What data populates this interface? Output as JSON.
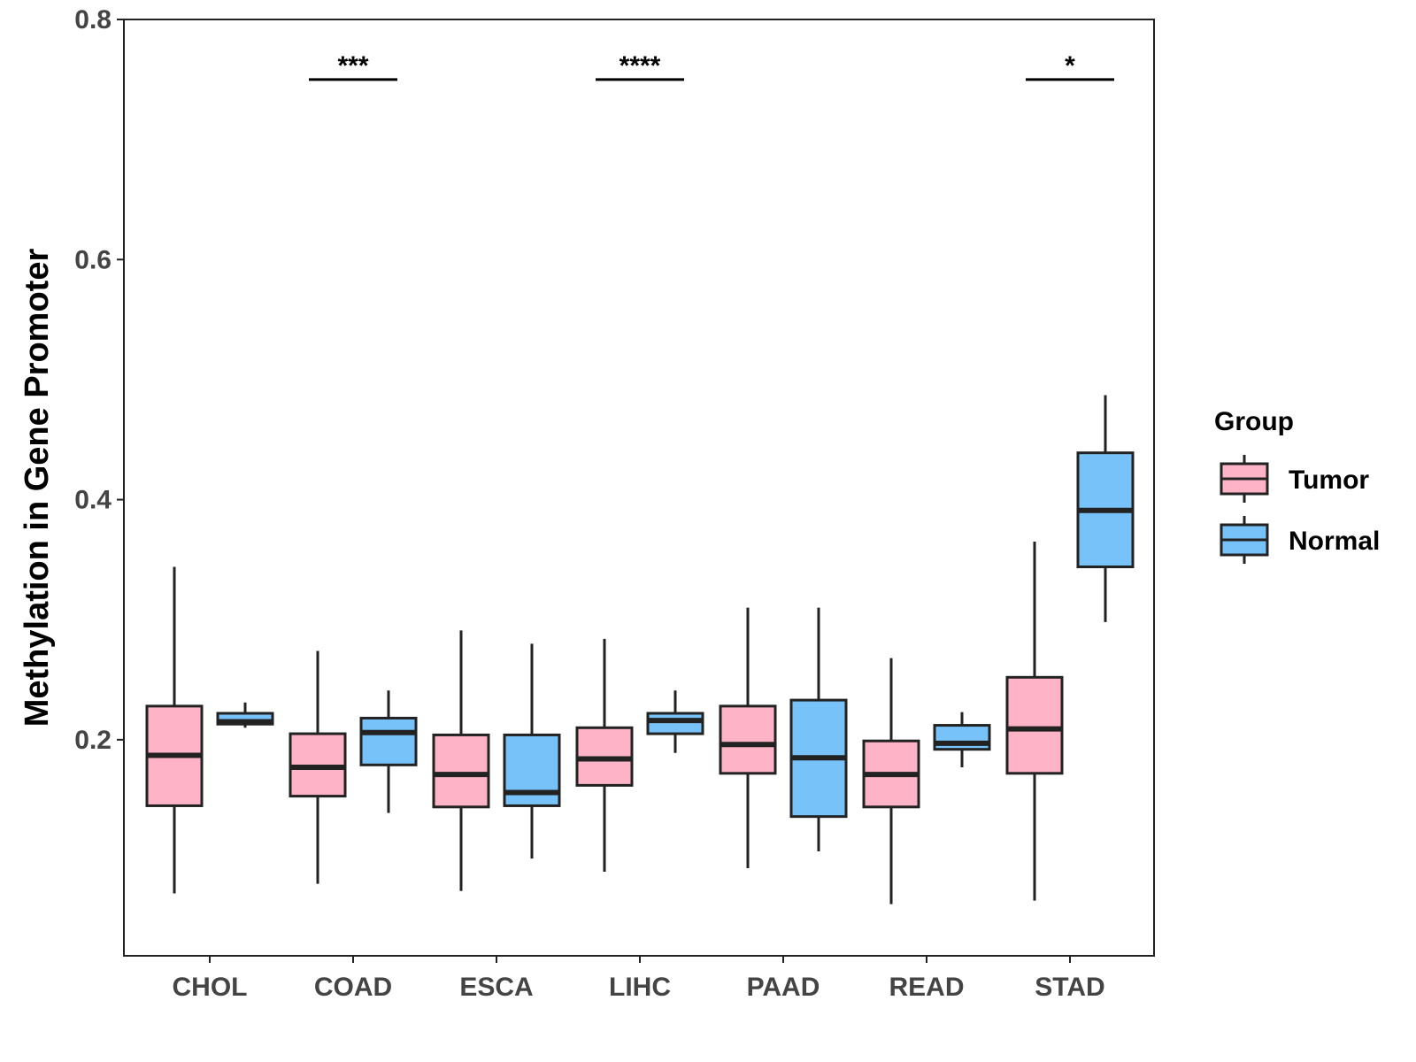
{
  "chart_data": {
    "type": "boxplot",
    "title": "",
    "xlabel": "",
    "ylabel": "Methylation in Gene Promoter",
    "ylim": [
      0.02,
      0.8
    ],
    "y_ticks": [
      0.2,
      0.4,
      0.6,
      0.8
    ],
    "y_tick_labels": [
      "0.2",
      "0.4",
      "0.6",
      "0.8"
    ],
    "categories": [
      "CHOL",
      "COAD",
      "ESCA",
      "LIHC",
      "PAAD",
      "READ",
      "STAD"
    ],
    "legend": {
      "title": "Group",
      "position": "right",
      "entries": [
        {
          "name": "Tumor",
          "color": "#FFB3C6"
        },
        {
          "name": "Normal",
          "color": "#78C2FA"
        }
      ]
    },
    "series": [
      {
        "name": "Tumor",
        "color": "#FFB3C6",
        "boxes": [
          {
            "category": "CHOL",
            "min": 0.072,
            "q1": 0.145,
            "median": 0.187,
            "q3": 0.228,
            "max": 0.344
          },
          {
            "category": "COAD",
            "min": 0.08,
            "q1": 0.153,
            "median": 0.177,
            "q3": 0.205,
            "max": 0.274
          },
          {
            "category": "ESCA",
            "min": 0.074,
            "q1": 0.144,
            "median": 0.171,
            "q3": 0.204,
            "max": 0.291
          },
          {
            "category": "LIHC",
            "min": 0.09,
            "q1": 0.162,
            "median": 0.184,
            "q3": 0.21,
            "max": 0.284
          },
          {
            "category": "PAAD",
            "min": 0.093,
            "q1": 0.172,
            "median": 0.196,
            "q3": 0.228,
            "max": 0.31
          },
          {
            "category": "READ",
            "min": 0.063,
            "q1": 0.144,
            "median": 0.171,
            "q3": 0.199,
            "max": 0.268
          },
          {
            "category": "STAD",
            "min": 0.066,
            "q1": 0.172,
            "median": 0.209,
            "q3": 0.252,
            "max": 0.365
          }
        ]
      },
      {
        "name": "Normal",
        "color": "#78C2FA",
        "boxes": [
          {
            "category": "CHOL",
            "min": 0.21,
            "q1": 0.213,
            "median": 0.215,
            "q3": 0.222,
            "max": 0.231
          },
          {
            "category": "COAD",
            "min": 0.139,
            "q1": 0.179,
            "median": 0.206,
            "q3": 0.218,
            "max": 0.241
          },
          {
            "category": "ESCA",
            "min": 0.101,
            "q1": 0.145,
            "median": 0.156,
            "q3": 0.204,
            "max": 0.28
          },
          {
            "category": "LIHC",
            "min": 0.189,
            "q1": 0.205,
            "median": 0.216,
            "q3": 0.222,
            "max": 0.241
          },
          {
            "category": "PAAD",
            "min": 0.107,
            "q1": 0.136,
            "median": 0.185,
            "q3": 0.233,
            "max": 0.31
          },
          {
            "category": "READ",
            "min": 0.177,
            "q1": 0.192,
            "median": 0.197,
            "q3": 0.212,
            "max": 0.223
          },
          {
            "category": "STAD",
            "min": 0.298,
            "q1": 0.344,
            "median": 0.391,
            "q3": 0.439,
            "max": 0.487
          }
        ]
      }
    ],
    "significance": [
      {
        "category": "COAD",
        "label": "***",
        "y": 0.75
      },
      {
        "category": "LIHC",
        "label": "****",
        "y": 0.75
      },
      {
        "category": "STAD",
        "label": "*",
        "y": 0.75
      }
    ],
    "grid": false
  }
}
